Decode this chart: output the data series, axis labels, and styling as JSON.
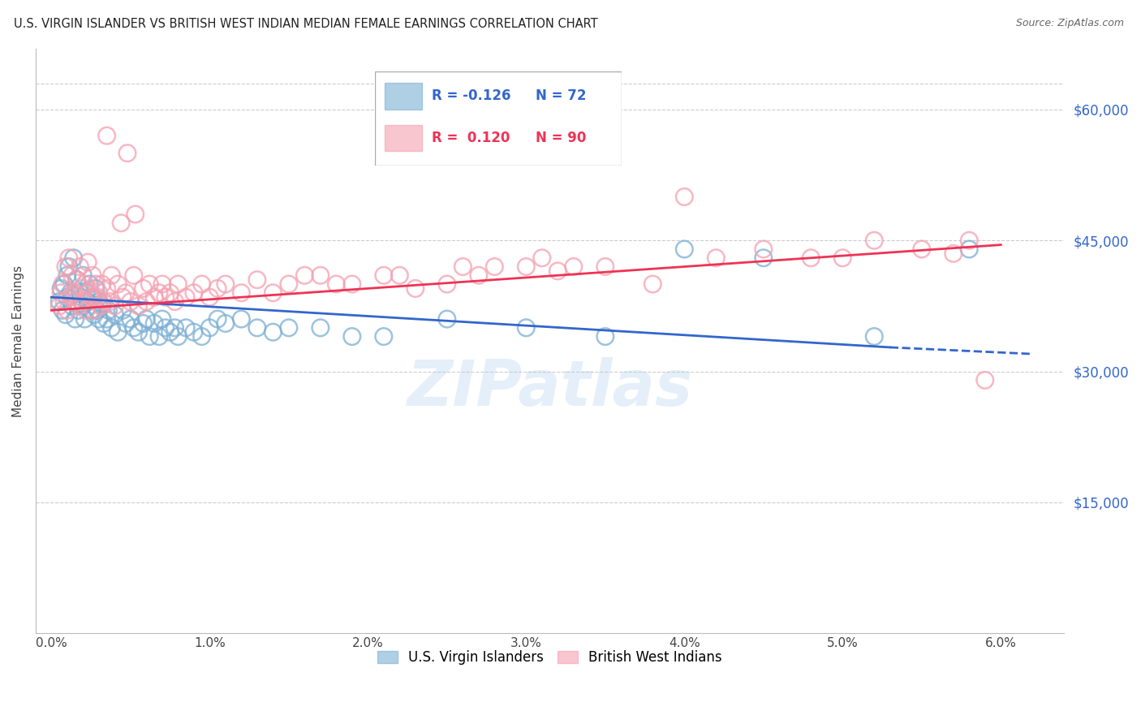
{
  "title": "U.S. VIRGIN ISLANDER VS BRITISH WEST INDIAN MEDIAN FEMALE EARNINGS CORRELATION CHART",
  "source": "Source: ZipAtlas.com",
  "ylabel": "Median Female Earnings",
  "xlabel_vals": [
    0.0,
    1.0,
    2.0,
    3.0,
    4.0,
    5.0,
    6.0
  ],
  "ytick_labels": [
    "$15,000",
    "$30,000",
    "$45,000",
    "$60,000"
  ],
  "ytick_vals": [
    15000,
    30000,
    45000,
    60000
  ],
  "ymin": 0,
  "ymax": 67000,
  "xmin": -0.1,
  "xmax": 6.4,
  "blue_color": "#7BAFD4",
  "pink_color": "#F4A0B0",
  "trend_blue": "#3366CC",
  "trend_pink": "#EE3355",
  "legend_R_blue": "-0.126",
  "legend_N_blue": "72",
  "legend_R_pink": "0.120",
  "legend_N_pink": "90",
  "watermark": "ZIPatlas",
  "blue_scatter_x": [
    0.05,
    0.06,
    0.07,
    0.08,
    0.09,
    0.1,
    0.1,
    0.11,
    0.12,
    0.13,
    0.14,
    0.15,
    0.15,
    0.16,
    0.17,
    0.18,
    0.19,
    0.2,
    0.2,
    0.21,
    0.22,
    0.23,
    0.24,
    0.25,
    0.26,
    0.27,
    0.28,
    0.29,
    0.3,
    0.3,
    0.32,
    0.33,
    0.35,
    0.36,
    0.38,
    0.4,
    0.42,
    0.45,
    0.47,
    0.5,
    0.52,
    0.55,
    0.58,
    0.6,
    0.62,
    0.65,
    0.68,
    0.7,
    0.72,
    0.75,
    0.78,
    0.8,
    0.85,
    0.9,
    0.95,
    1.0,
    1.05,
    1.1,
    1.2,
    1.3,
    1.4,
    1.5,
    1.7,
    1.9,
    2.1,
    2.5,
    3.0,
    3.5,
    4.0,
    4.5,
    5.2,
    5.8
  ],
  "blue_scatter_y": [
    38000,
    39500,
    37000,
    40000,
    36500,
    41000,
    38500,
    42000,
    39000,
    37500,
    43000,
    38000,
    36000,
    40500,
    37000,
    39000,
    38500,
    37500,
    41000,
    36000,
    39000,
    38000,
    40000,
    37000,
    38500,
    36500,
    39500,
    37000,
    38000,
    36000,
    37500,
    35500,
    36000,
    37000,
    35000,
    36500,
    34500,
    37000,
    35500,
    36000,
    35000,
    34500,
    35500,
    36000,
    34000,
    35500,
    34000,
    36000,
    35000,
    34500,
    35000,
    34000,
    35000,
    34500,
    34000,
    35000,
    36000,
    35500,
    36000,
    35000,
    34500,
    35000,
    35000,
    34000,
    34000,
    36000,
    35000,
    34000,
    44000,
    43000,
    34000,
    44000
  ],
  "pink_scatter_x": [
    0.05,
    0.06,
    0.07,
    0.08,
    0.09,
    0.1,
    0.11,
    0.12,
    0.13,
    0.14,
    0.15,
    0.16,
    0.17,
    0.18,
    0.19,
    0.2,
    0.21,
    0.22,
    0.23,
    0.24,
    0.25,
    0.26,
    0.27,
    0.28,
    0.29,
    0.3,
    0.31,
    0.32,
    0.33,
    0.35,
    0.37,
    0.38,
    0.4,
    0.42,
    0.45,
    0.47,
    0.5,
    0.52,
    0.55,
    0.58,
    0.6,
    0.62,
    0.65,
    0.68,
    0.7,
    0.72,
    0.75,
    0.78,
    0.8,
    0.85,
    0.9,
    0.95,
    1.0,
    1.05,
    1.1,
    1.2,
    1.3,
    1.4,
    1.5,
    1.7,
    1.9,
    2.1,
    2.3,
    2.5,
    2.7,
    3.0,
    3.2,
    3.5,
    3.8,
    4.0,
    4.2,
    4.5,
    4.8,
    5.0,
    5.2,
    5.5,
    5.7,
    5.8,
    5.9,
    2.2,
    2.6,
    2.8,
    1.6,
    1.8,
    3.1,
    3.3,
    0.35,
    0.44,
    0.48,
    0.53
  ],
  "pink_scatter_y": [
    37500,
    39000,
    40000,
    38000,
    42000,
    37000,
    43000,
    38500,
    41000,
    39000,
    38000,
    40500,
    37500,
    42000,
    39500,
    38000,
    40000,
    37000,
    42500,
    39000,
    38500,
    41000,
    37000,
    40000,
    38500,
    39000,
    37500,
    40000,
    38000,
    39500,
    38000,
    41000,
    37500,
    40000,
    38500,
    39000,
    38000,
    41000,
    37500,
    39500,
    38000,
    40000,
    38500,
    39000,
    40000,
    38500,
    39000,
    38000,
    40000,
    38500,
    39000,
    40000,
    38500,
    39500,
    40000,
    39000,
    40500,
    39000,
    40000,
    41000,
    40000,
    41000,
    39500,
    40000,
    41000,
    42000,
    41500,
    42000,
    40000,
    50000,
    43000,
    44000,
    43000,
    43000,
    45000,
    44000,
    43500,
    45000,
    29000,
    41000,
    42000,
    42000,
    41000,
    40000,
    43000,
    42000,
    57000,
    47000,
    55000,
    48000
  ]
}
